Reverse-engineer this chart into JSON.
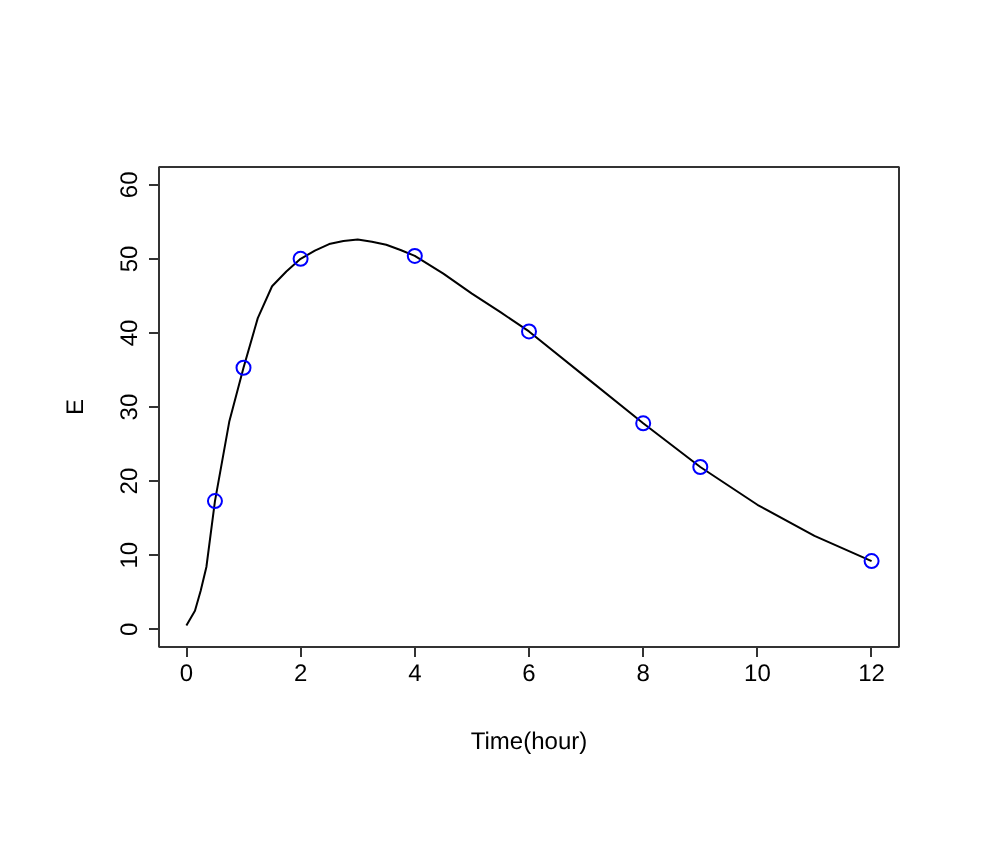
{
  "chart_data": {
    "type": "scatter",
    "xlabel": "Time(hour)",
    "ylabel": "E",
    "xlim": [
      -0.48,
      12.48
    ],
    "ylim": [
      -2.4,
      62.4
    ],
    "xticks": [
      0,
      2,
      4,
      6,
      8,
      10,
      12
    ],
    "yticks": [
      0,
      10,
      20,
      30,
      40,
      50,
      60
    ],
    "marker": "circle",
    "series": [
      {
        "type": "line",
        "color": "#000000",
        "marker": "none",
        "x": [
          0,
          0.15,
          0.25,
          0.35,
          0.5,
          0.75,
          1,
          1.25,
          1.5,
          1.75,
          2,
          2.25,
          2.5,
          2.75,
          3,
          3.25,
          3.5,
          3.75,
          4,
          4.5,
          5,
          5.5,
          6,
          7,
          8,
          9,
          10,
          11,
          12
        ],
        "values": [
          0.5,
          2.5,
          5.2,
          8.4,
          17.3,
          28,
          35.3,
          42,
          46.3,
          48.3,
          50,
          51.1,
          52,
          52.4,
          52.6,
          52.3,
          51.9,
          51.2,
          50.4,
          48,
          45.3,
          42.8,
          40.2,
          34,
          27.8,
          21.9,
          16.8,
          12.6,
          9.2
        ]
      },
      {
        "color": "#0000ff",
        "x": [
          0.5,
          1,
          2,
          4,
          6,
          8,
          9,
          12
        ],
        "values": [
          17.3,
          35.3,
          50.0,
          50.4,
          40.2,
          27.8,
          21.9,
          9.2
        ]
      }
    ]
  }
}
